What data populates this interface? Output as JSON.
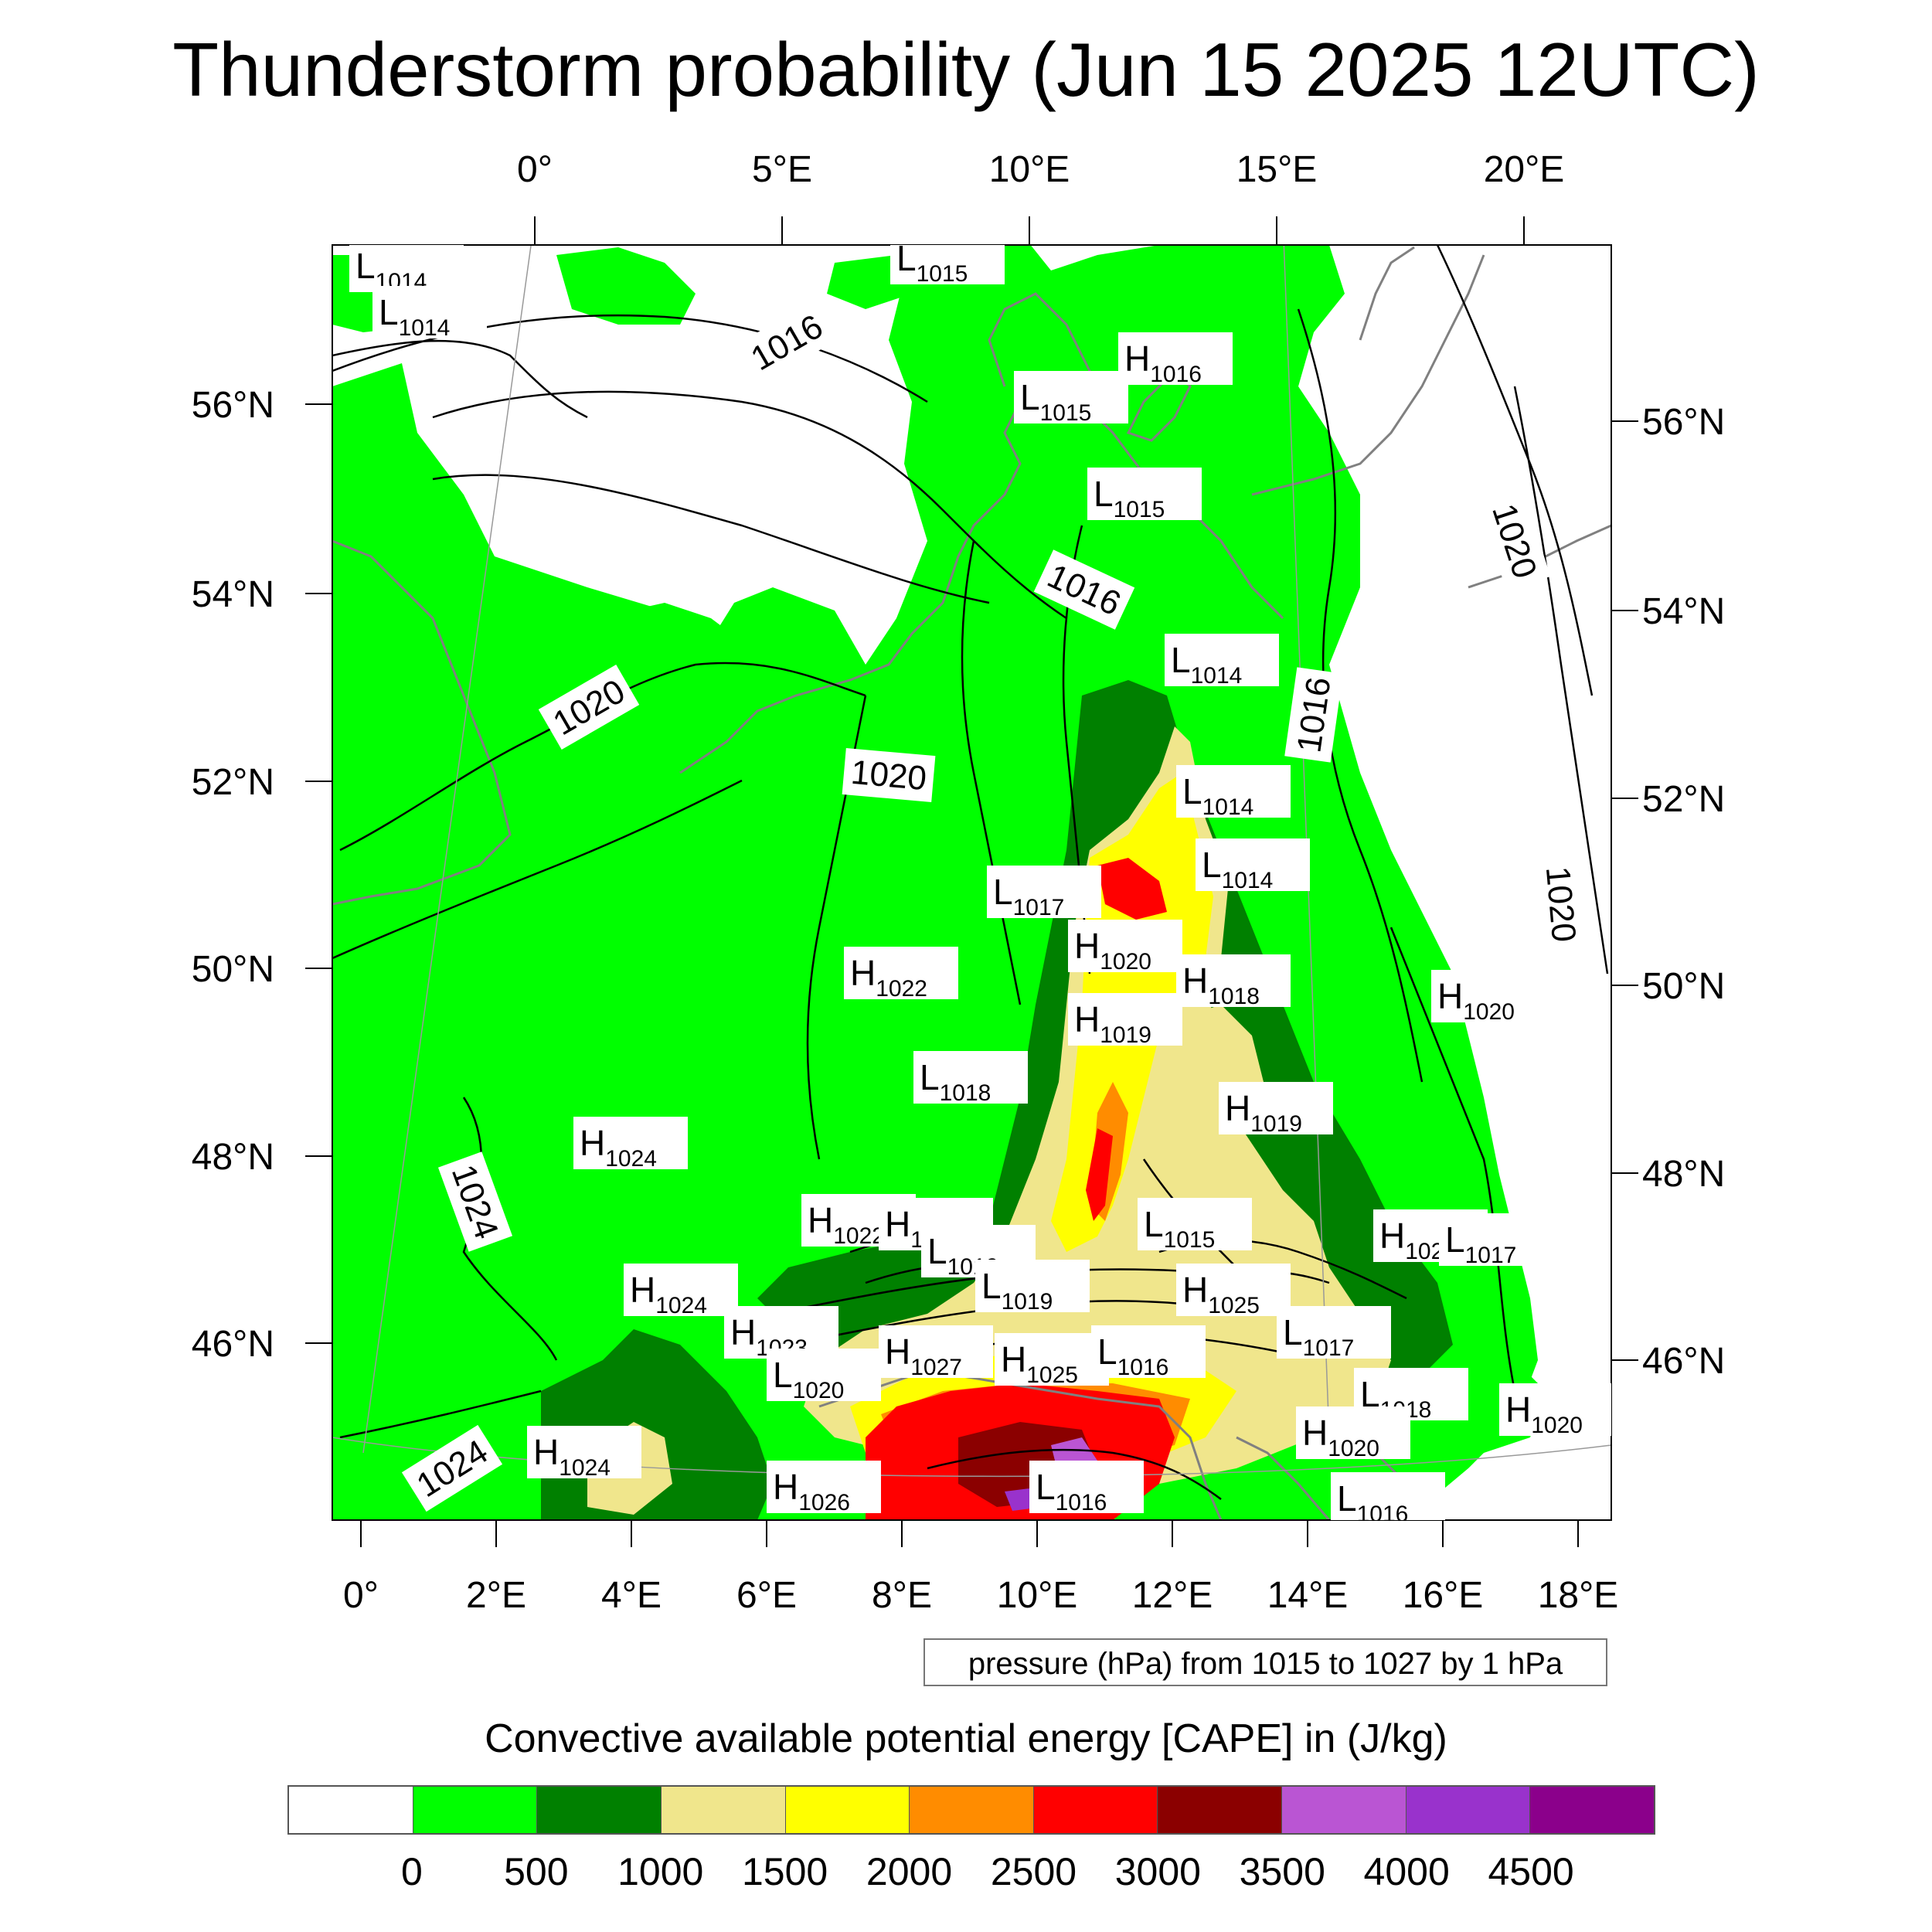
{
  "title": "Thunderstorm probability (Jun 15 2025 12UTC)",
  "top_lon_labels": [
    "0°",
    "5°E",
    "10°E",
    "15°E",
    "20°E"
  ],
  "bottom_lon_labels": [
    "0°",
    "2°E",
    "4°E",
    "6°E",
    "8°E",
    "10°E",
    "12°E",
    "14°E",
    "16°E",
    "18°E"
  ],
  "left_lat_labels": [
    "56°N",
    "54°N",
    "52°N",
    "50°N",
    "48°N",
    "46°N"
  ],
  "right_lat_labels": [
    "56°N",
    "54°N",
    "52°N",
    "50°N",
    "48°N",
    "46°N"
  ],
  "pressure_note": "pressure (hPa) from 1015 to 1027 by 1 hPa",
  "colorbar": {
    "title": "Convective available potential energy [CAPE] in (J/kg)",
    "colors": [
      "#ffffff",
      "#00ff00",
      "#008000",
      "#f0e68c",
      "#ffff00",
      "#ff8c00",
      "#ff0000",
      "#8b0000",
      "#ba55d3",
      "#9932cc",
      "#8b008b"
    ],
    "ticks": [
      "0",
      "500",
      "1000",
      "1500",
      "2000",
      "2500",
      "3000",
      "3500",
      "4000",
      "4500"
    ]
  },
  "isobar_labels": [
    "1016",
    "1016",
    "1016",
    "1020",
    "1020",
    "1020",
    "1020",
    "1024",
    "1024"
  ],
  "pressure_centers": [
    {
      "type": "L",
      "value": "1014"
    },
    {
      "type": "L",
      "value": "1014"
    },
    {
      "type": "L",
      "value": "1015"
    },
    {
      "type": "H",
      "value": "1016"
    },
    {
      "type": "L",
      "value": "1015"
    },
    {
      "type": "L",
      "value": "1015"
    },
    {
      "type": "L",
      "value": "1014"
    },
    {
      "type": "L",
      "value": "1014"
    },
    {
      "type": "L",
      "value": "1014"
    },
    {
      "type": "L",
      "value": "1017"
    },
    {
      "type": "H",
      "value": "1020"
    },
    {
      "type": "H",
      "value": "1022"
    },
    {
      "type": "H",
      "value": "1018"
    },
    {
      "type": "H",
      "value": "1019"
    },
    {
      "type": "H",
      "value": "1020"
    },
    {
      "type": "L",
      "value": "1018"
    },
    {
      "type": "H",
      "value": "1019"
    },
    {
      "type": "H",
      "value": "1024"
    },
    {
      "type": "H",
      "value": "1022"
    },
    {
      "type": "H",
      "value": "1022"
    },
    {
      "type": "L",
      "value": "1019"
    },
    {
      "type": "L",
      "value": "1015"
    },
    {
      "type": "H",
      "value": "1025"
    },
    {
      "type": "L",
      "value": "1017"
    },
    {
      "type": "H",
      "value": "1024"
    },
    {
      "type": "L",
      "value": "1019"
    },
    {
      "type": "H",
      "value": "1025"
    },
    {
      "type": "H",
      "value": "1023"
    },
    {
      "type": "L",
      "value": "1020"
    },
    {
      "type": "H",
      "value": "1027"
    },
    {
      "type": "H",
      "value": "1025"
    },
    {
      "type": "L",
      "value": "1016"
    },
    {
      "type": "L",
      "value": "1017"
    },
    {
      "type": "L",
      "value": "1018"
    },
    {
      "type": "H",
      "value": "1020"
    },
    {
      "type": "H",
      "value": "1020"
    },
    {
      "type": "H",
      "value": "1024"
    },
    {
      "type": "H",
      "value": "1026"
    },
    {
      "type": "L",
      "value": "1016"
    },
    {
      "type": "L",
      "value": "1016"
    }
  ]
}
